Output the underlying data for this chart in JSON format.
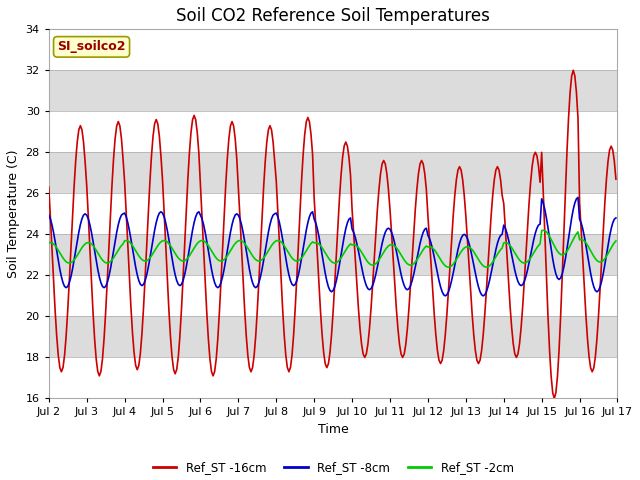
{
  "title": "Soil CO2 Reference Soil Temperatures",
  "xlabel": "Time",
  "ylabel": "Soil Temperature (C)",
  "ylim": [
    16,
    34
  ],
  "yticks": [
    16,
    18,
    20,
    22,
    24,
    26,
    28,
    30,
    32,
    34
  ],
  "xtick_labels": [
    "Jul 2",
    "Jul 3",
    "Jul 4",
    "Jul 5",
    "Jul 6",
    "Jul 7",
    "Jul 8",
    "Jul 9",
    "Jul 10",
    "Jul 11",
    "Jul 12",
    "Jul 13",
    "Jul 14",
    "Jul 15",
    "Jul 16",
    "Jul 17"
  ],
  "series": {
    "Ref_ST -16cm": {
      "color": "#CC0000",
      "linewidth": 1.2
    },
    "Ref_ST -8cm": {
      "color": "#0000CC",
      "linewidth": 1.2
    },
    "Ref_ST -2cm": {
      "color": "#00CC00",
      "linewidth": 1.2
    }
  },
  "annotation_text": "SI_soilco2",
  "annotation_color": "#990000",
  "annotation_bg": "#FFFFCC",
  "annotation_border": "#999900",
  "band_colors": [
    "#FFFFFF",
    "#DCDCDC"
  ],
  "title_fontsize": 12,
  "axis_fontsize": 9,
  "tick_fontsize": 8
}
